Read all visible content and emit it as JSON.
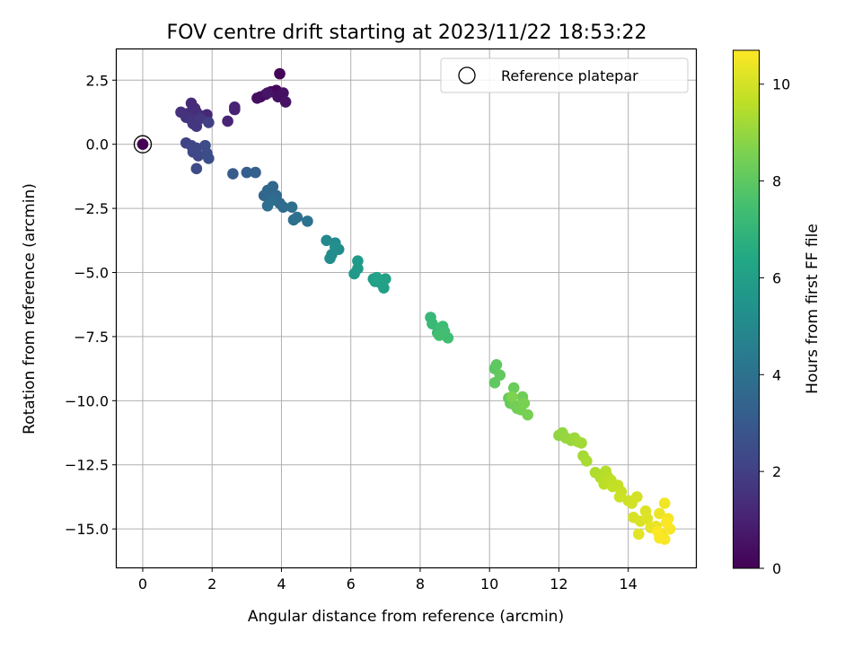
{
  "chart_data": {
    "type": "scatter",
    "title": "FOV centre drift starting at 2023/11/22 18:53:22",
    "xlabel": "Angular distance from reference (arcmin)",
    "ylabel": "Rotation from reference (arcmin)",
    "xlim": [
      -0.75,
      15.95
    ],
    "ylim": [
      -16.5,
      3.7
    ],
    "xticks": [
      0,
      2,
      4,
      6,
      8,
      10,
      12,
      14
    ],
    "yticks": [
      2.5,
      0.0,
      -2.5,
      -5.0,
      -7.5,
      -10.0,
      -12.5,
      -15.0
    ],
    "xtick_labels": [
      "0",
      "2",
      "4",
      "6",
      "8",
      "10",
      "12",
      "14"
    ],
    "ytick_labels": [
      "2.5",
      "0.0",
      "−2.5",
      "−5.0",
      "−7.5",
      "−10.0",
      "−12.5",
      "−15.0"
    ],
    "grid": true,
    "legend": {
      "position": "top-right",
      "entries": [
        {
          "label": "Reference platepar",
          "marker": "open-circle"
        }
      ]
    },
    "reference_point": {
      "x": 0,
      "y": 0,
      "hours": 0
    },
    "colorbar": {
      "label": "Hours from first FF file",
      "range": [
        0,
        10.7
      ],
      "ticks": [
        0,
        2,
        4,
        6,
        8,
        10
      ],
      "tick_labels": [
        "0",
        "2",
        "4",
        "6",
        "8",
        "10"
      ],
      "colormap": "viridis"
    },
    "points": [
      [
        3.95,
        2.75,
        0.1
      ],
      [
        3.85,
        2.1,
        0.2
      ],
      [
        3.7,
        2.05,
        0.25
      ],
      [
        3.55,
        1.95,
        0.3
      ],
      [
        3.4,
        1.85,
        0.35
      ],
      [
        3.3,
        1.8,
        0.4
      ],
      [
        3.9,
        1.85,
        0.45
      ],
      [
        4.05,
        2.0,
        0.5
      ],
      [
        4.12,
        1.65,
        0.55
      ],
      [
        3.6,
        2.0,
        0.6
      ],
      [
        2.65,
        1.45,
        1.0
      ],
      [
        2.65,
        1.35,
        1.05
      ],
      [
        2.45,
        0.9,
        1.1
      ],
      [
        1.85,
        1.15,
        1.2
      ],
      [
        1.75,
        1.1,
        1.25
      ],
      [
        1.4,
        1.6,
        1.3
      ],
      [
        1.5,
        1.4,
        1.35
      ],
      [
        1.55,
        1.25,
        1.4
      ],
      [
        1.3,
        1.2,
        1.45
      ],
      [
        1.1,
        1.25,
        1.5
      ],
      [
        1.25,
        1.05,
        1.55
      ],
      [
        1.4,
        0.95,
        1.6
      ],
      [
        1.45,
        0.8,
        1.65
      ],
      [
        1.55,
        0.7,
        1.7
      ],
      [
        1.65,
        1.0,
        1.75
      ],
      [
        1.9,
        0.85,
        2.0
      ],
      [
        1.25,
        0.05,
        2.1
      ],
      [
        1.4,
        -0.05,
        2.2
      ],
      [
        1.55,
        -0.15,
        2.25
      ],
      [
        1.45,
        -0.3,
        2.3
      ],
      [
        1.6,
        -0.45,
        2.35
      ],
      [
        1.55,
        -0.95,
        2.4
      ],
      [
        1.8,
        -0.05,
        2.45
      ],
      [
        1.85,
        -0.35,
        2.5
      ],
      [
        1.9,
        -0.55,
        2.55
      ],
      [
        2.6,
        -1.15,
        3.1
      ],
      [
        3.0,
        -1.1,
        3.2
      ],
      [
        3.25,
        -1.1,
        3.25
      ],
      [
        3.5,
        -2.0,
        3.5
      ],
      [
        3.6,
        -1.8,
        3.55
      ],
      [
        3.75,
        -1.65,
        3.6
      ],
      [
        3.85,
        -2.0,
        3.65
      ],
      [
        3.95,
        -2.3,
        3.7
      ],
      [
        4.05,
        -2.45,
        3.75
      ],
      [
        3.7,
        -2.2,
        3.8
      ],
      [
        3.6,
        -2.4,
        3.85
      ],
      [
        4.3,
        -2.45,
        3.9
      ],
      [
        4.35,
        -2.95,
        3.95
      ],
      [
        4.45,
        -2.85,
        4.0
      ],
      [
        4.75,
        -3.0,
        4.05
      ],
      [
        5.3,
        -3.75,
        5.0
      ],
      [
        5.55,
        -3.85,
        5.05
      ],
      [
        5.65,
        -4.1,
        5.1
      ],
      [
        5.45,
        -4.3,
        5.15
      ],
      [
        5.4,
        -4.45,
        5.2
      ],
      [
        5.55,
        -4.0,
        5.25
      ],
      [
        6.1,
        -5.05,
        5.7
      ],
      [
        6.2,
        -4.85,
        5.75
      ],
      [
        6.2,
        -4.55,
        5.8
      ],
      [
        6.65,
        -5.25,
        5.9
      ],
      [
        6.7,
        -5.35,
        5.95
      ],
      [
        6.85,
        -5.4,
        6.0
      ],
      [
        6.95,
        -5.6,
        6.05
      ],
      [
        7.0,
        -5.25,
        6.1
      ],
      [
        6.75,
        -5.2,
        6.15
      ],
      [
        8.3,
        -6.75,
        7.1
      ],
      [
        8.35,
        -7.0,
        7.15
      ],
      [
        8.5,
        -7.35,
        7.2
      ],
      [
        8.6,
        -7.3,
        7.25
      ],
      [
        8.65,
        -7.1,
        7.3
      ],
      [
        8.7,
        -7.3,
        7.35
      ],
      [
        8.8,
        -7.55,
        7.4
      ],
      [
        8.55,
        -7.45,
        7.45
      ],
      [
        10.15,
        -8.75,
        7.95
      ],
      [
        10.2,
        -8.6,
        8.0
      ],
      [
        10.15,
        -9.3,
        8.05
      ],
      [
        10.3,
        -9.0,
        8.1
      ],
      [
        10.55,
        -9.9,
        8.15
      ],
      [
        10.6,
        -10.1,
        8.2
      ],
      [
        10.7,
        -9.5,
        8.25
      ],
      [
        10.8,
        -10.3,
        8.3
      ],
      [
        10.95,
        -9.85,
        8.35
      ],
      [
        10.75,
        -10.2,
        8.4
      ],
      [
        10.9,
        -10.35,
        8.45
      ],
      [
        11.1,
        -10.55,
        8.5
      ],
      [
        11.0,
        -10.1,
        8.55
      ],
      [
        10.65,
        -9.85,
        8.6
      ],
      [
        12.0,
        -11.35,
        8.9
      ],
      [
        12.1,
        -11.25,
        8.95
      ],
      [
        12.2,
        -11.45,
        9.0
      ],
      [
        12.35,
        -11.55,
        9.05
      ],
      [
        12.45,
        -11.45,
        9.1
      ],
      [
        12.55,
        -11.6,
        9.15
      ],
      [
        12.65,
        -11.65,
        9.2
      ],
      [
        12.7,
        -12.15,
        9.25
      ],
      [
        12.8,
        -12.35,
        9.3
      ],
      [
        13.05,
        -12.8,
        9.4
      ],
      [
        13.2,
        -13.0,
        9.45
      ],
      [
        13.35,
        -12.75,
        9.5
      ],
      [
        13.4,
        -12.95,
        9.55
      ],
      [
        13.3,
        -13.25,
        9.6
      ],
      [
        13.5,
        -13.1,
        9.65
      ],
      [
        13.55,
        -13.35,
        9.7
      ],
      [
        13.7,
        -13.3,
        9.75
      ],
      [
        13.8,
        -13.55,
        9.8
      ],
      [
        13.75,
        -13.75,
        9.85
      ],
      [
        14.0,
        -13.9,
        9.9
      ],
      [
        14.1,
        -14.0,
        9.95
      ],
      [
        14.25,
        -13.75,
        10.0
      ],
      [
        14.15,
        -14.55,
        10.05
      ],
      [
        14.35,
        -14.7,
        10.1
      ],
      [
        14.5,
        -14.3,
        10.15
      ],
      [
        14.55,
        -14.6,
        10.2
      ],
      [
        14.3,
        -15.2,
        10.25
      ],
      [
        14.65,
        -14.95,
        10.3
      ],
      [
        14.8,
        -14.9,
        10.35
      ],
      [
        14.9,
        -14.4,
        10.4
      ],
      [
        14.95,
        -15.2,
        10.45
      ],
      [
        15.05,
        -14.0,
        10.5
      ],
      [
        15.15,
        -14.6,
        10.55
      ],
      [
        15.2,
        -15.0,
        10.6
      ],
      [
        15.05,
        -15.4,
        10.62
      ],
      [
        14.9,
        -15.35,
        10.64
      ],
      [
        15.1,
        -14.75,
        10.66
      ],
      [
        14.85,
        -15.1,
        10.68
      ]
    ]
  }
}
